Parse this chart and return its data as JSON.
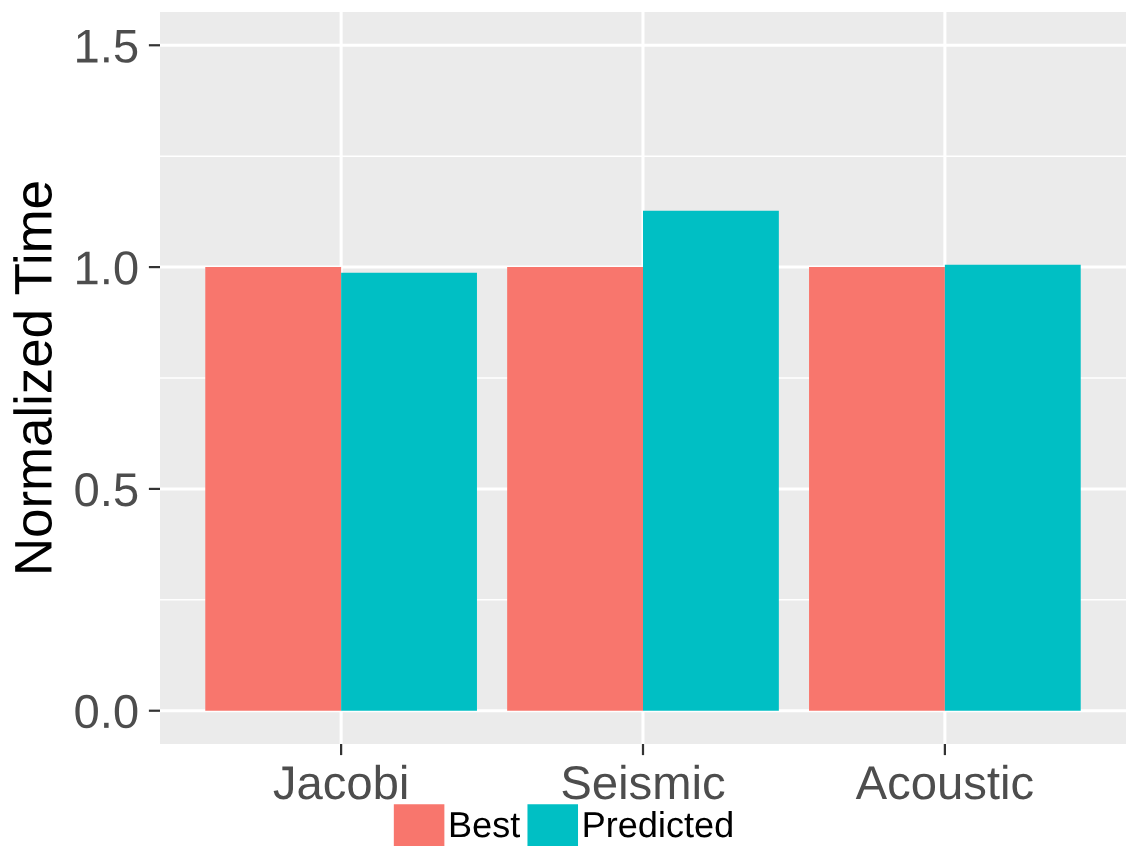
{
  "chart_data": {
    "type": "bar",
    "ylabel": "Normalized Time",
    "categories": [
      "Jacobi",
      "Seismic",
      "Acoustic"
    ],
    "series": [
      {
        "name": "Best",
        "color": "#f8766d",
        "values": [
          1.0,
          1.0,
          1.0
        ]
      },
      {
        "name": "Predicted",
        "color": "#00bfc4",
        "values": [
          0.987,
          1.127,
          1.005
        ]
      }
    ],
    "ylim": [
      -0.075,
      1.575
    ],
    "yticks": [
      {
        "value": 0,
        "label": "0.0"
      },
      {
        "value": 0.25,
        "label": null
      },
      0.5,
      {
        "value": 0.75,
        "label": null
      },
      {
        "value": 1,
        "label": "1.0"
      },
      {
        "value": 1.25,
        "label": null
      },
      1.5
    ],
    "grid": true,
    "legend": "bottom"
  }
}
